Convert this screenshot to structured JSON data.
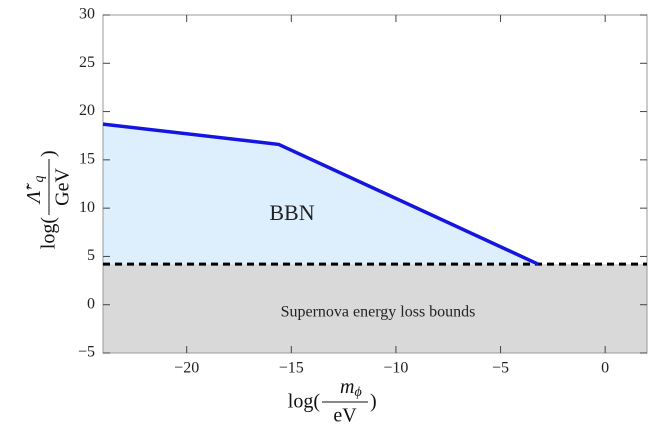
{
  "chart_data": {
    "type": "line",
    "x": [
      -24,
      -15.6,
      -3.2
    ],
    "series": [
      {
        "color": "#1515e0",
        "values": [
          18.7,
          16.6,
          4.2
        ]
      }
    ],
    "fill_color": "#ddeefc",
    "bound": {
      "value": 4.2,
      "color": "#d9d9d9",
      "style": "dashed"
    },
    "annotations": [
      "BBN",
      "Supernova energy loss bounds"
    ],
    "xlim": [
      -24,
      2
    ],
    "ylim": [
      -5,
      30
    ],
    "xticks": [
      {
        "value": -20,
        "label": "−20"
      },
      {
        "value": -15,
        "label": "−15"
      },
      {
        "value": -10,
        "label": "−10"
      },
      {
        "value": -5,
        "label": "−5"
      },
      0
    ],
    "yticks": [
      {
        "value": -5,
        "label": "−5"
      },
      0,
      5,
      10,
      15,
      20,
      25,
      30
    ],
    "xlabel": {
      "prefix": "log(",
      "numerator": "m",
      "numerator_sub": "ϕ",
      "denominator": "eV",
      "suffix": ")"
    },
    "ylabel": {
      "prefix": "log(",
      "numerator": "Λ̃′",
      "numerator_sub": "q",
      "denominator": "GeV",
      "suffix": ")"
    }
  }
}
